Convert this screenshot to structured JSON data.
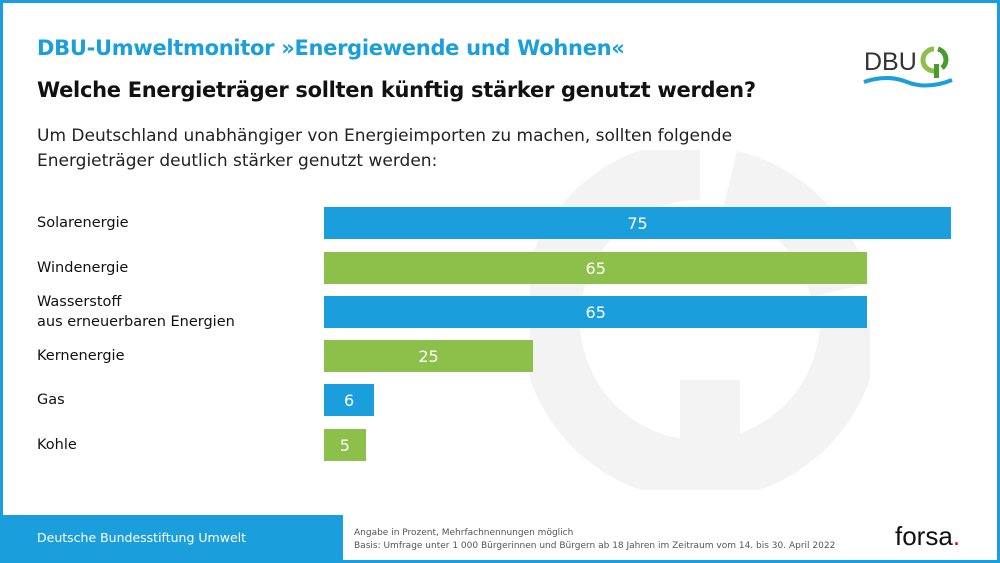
{
  "header": {
    "title": "DBU-Umweltmonitor »Energiewende und Wohnen«",
    "question": "Welche Energieträger sollten künftig stärker genutzt werden?",
    "intro": "Um Deutschland unabhängiger von Energieimporten zu machen, sollten folgende Energieträger deutlich stärker genutzt werden:"
  },
  "logo": {
    "text": "DBU"
  },
  "chart_data": {
    "type": "bar",
    "orientation": "horizontal",
    "categories": [
      "Solarenergie",
      "Windenergie",
      "Wasserstoff\naus erneuerbaren Energien",
      "Kernenergie",
      "Gas",
      "Kohle"
    ],
    "values": [
      75,
      65,
      65,
      25,
      6,
      5
    ],
    "colors": [
      "#1a9fdc",
      "#8dc04a",
      "#1a9fdc",
      "#8dc04a",
      "#1a9fdc",
      "#8dc04a"
    ],
    "unit": "%",
    "xlim": [
      0,
      75
    ],
    "grid": false
  },
  "footer": {
    "org": "Deutsche Bundesstiftung Umwelt",
    "note1": "Angabe in Prozent, Mehrfachnennungen möglich",
    "note2": "Basis: Umfrage unter 1 000 Bürgerinnen und Bürgern ab 18 Jahren im Zeitraum vom 14. bis 30. April 2022",
    "brand": "forsa",
    "brand_dot": "."
  }
}
